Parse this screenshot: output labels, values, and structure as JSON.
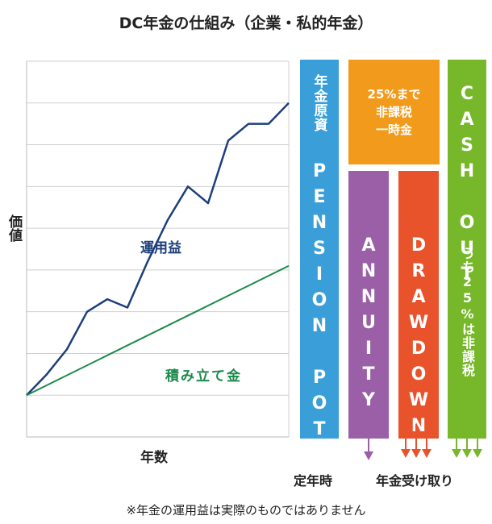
{
  "title": "DC年金の仕組み（企業・私的年金）",
  "chart": {
    "y_axis_label": "価値",
    "x_axis_label": "年数",
    "investment_gain_label": "運用益",
    "contributions_label": "積み立て金",
    "colors": {
      "investment": "#1d3f7a",
      "contributions": "#1a8a4b",
      "grid": "#cfcfcf"
    }
  },
  "chart_data": {
    "type": "line",
    "xlabel": "年数",
    "ylabel": "価値",
    "grid": true,
    "series": [
      {
        "name": "運用益",
        "color": "#1d3f7a",
        "x": [
          0,
          1,
          2,
          3,
          4,
          5,
          6,
          7,
          8,
          9,
          10,
          11,
          12,
          13
        ],
        "values": [
          1.0,
          1.5,
          2.1,
          3.0,
          3.3,
          3.1,
          4.2,
          5.2,
          6.0,
          5.6,
          7.1,
          7.5,
          7.5,
          8.0
        ]
      },
      {
        "name": "積み立て金",
        "color": "#1a8a4b",
        "x": [
          0,
          13
        ],
        "values": [
          1.0,
          4.1
        ]
      }
    ]
  },
  "columns": {
    "pension_pot": {
      "jp": "年金原資",
      "en": "PENSION POT",
      "color": "#3a9fd8"
    },
    "lump_sum": {
      "lines": [
        "25%まで",
        "非課税",
        "一時金"
      ],
      "color": "#f29a1b"
    },
    "annuity": {
      "en": "ANNUITY",
      "color": "#9b5fa8"
    },
    "drawdown": {
      "en": "DRAWDOWN",
      "color": "#e8532c"
    },
    "cash_out": {
      "en": "CASH OUT",
      "jp": "うち25%は非課税",
      "color": "#76b82a"
    }
  },
  "footer": {
    "retirement": "定年時",
    "receive": "年金受け取り"
  },
  "note": "※年金の運用益は実際のものではありません"
}
